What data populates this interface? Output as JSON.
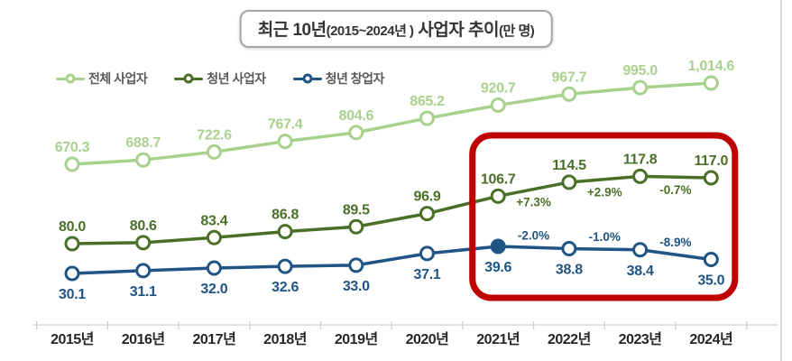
{
  "title": {
    "part_bold1": "최근 10년",
    "part_small1": "(2015~2024년 )",
    "part_bold2": " 사업자 추이",
    "part_small2": "(만 명)"
  },
  "legend": {
    "items": [
      {
        "label": "전체 사업자",
        "color": "#a9d18e"
      },
      {
        "label": "청년 사업자",
        "color": "#4a7028"
      },
      {
        "label": "청년 창업자",
        "color": "#1f5484"
      }
    ]
  },
  "chart_data": {
    "type": "line",
    "title": "최근 10년(2015~2024년 ) 사업자 추이(만 명)",
    "unit": "만 명",
    "y_axis": "hidden",
    "legend_position": "top-left",
    "categories": [
      "2015년",
      "2016년",
      "2017년",
      "2018년",
      "2019년",
      "2020년",
      "2021년",
      "2022년",
      "2023년",
      "2024년"
    ],
    "series": [
      {
        "name": "전체 사업자",
        "color": "#a9d18e",
        "values": [
          670.3,
          688.7,
          722.6,
          767.4,
          804.6,
          865.2,
          920.7,
          967.7,
          995.0,
          1014.6
        ],
        "labels": [
          "670.3",
          "688.7",
          "722.6",
          "767.4",
          "804.6",
          "865.2",
          "920.7",
          "967.7",
          "995.0",
          "1,014.6"
        ],
        "label_side": "above"
      },
      {
        "name": "청년 사업자",
        "color": "#4a7028",
        "values": [
          80.0,
          80.6,
          83.4,
          86.8,
          89.5,
          96.9,
          106.7,
          114.5,
          117.8,
          117.0
        ],
        "labels": [
          "80.0",
          "80.6",
          "83.4",
          "86.8",
          "89.5",
          "96.9",
          "106.7",
          "114.5",
          "117.8",
          "117.0"
        ],
        "label_side": "above"
      },
      {
        "name": "청년 창업자",
        "color": "#1f5484",
        "values": [
          30.1,
          31.1,
          32.0,
          32.6,
          33.0,
          37.1,
          39.6,
          38.8,
          38.4,
          35.0
        ],
        "labels": [
          "30.1",
          "31.1",
          "32.0",
          "32.6",
          "33.0",
          "37.1",
          "39.6",
          "38.8",
          "38.4",
          "35.0"
        ],
        "label_side": "below",
        "filled_point": 6
      }
    ],
    "annotations": [
      {
        "series_index": 1,
        "segment": [
          6,
          7
        ],
        "text": "+7.3%",
        "placement": "below"
      },
      {
        "series_index": 1,
        "segment": [
          7,
          8
        ],
        "text": "+2.9%",
        "placement": "below"
      },
      {
        "series_index": 1,
        "segment": [
          8,
          9
        ],
        "text": "-0.7%",
        "placement": "below"
      },
      {
        "series_index": 2,
        "segment": [
          6,
          7
        ],
        "text": "-2.0%",
        "placement": "above"
      },
      {
        "series_index": 2,
        "segment": [
          7,
          8
        ],
        "text": "-1.0%",
        "placement": "above"
      },
      {
        "series_index": 2,
        "segment": [
          8,
          9
        ],
        "text": "-8.9%",
        "placement": "above"
      }
    ],
    "highlight": {
      "type": "rounded-rect",
      "color": "#c00000",
      "from_category": "2021년",
      "to_category": "2024년"
    }
  }
}
